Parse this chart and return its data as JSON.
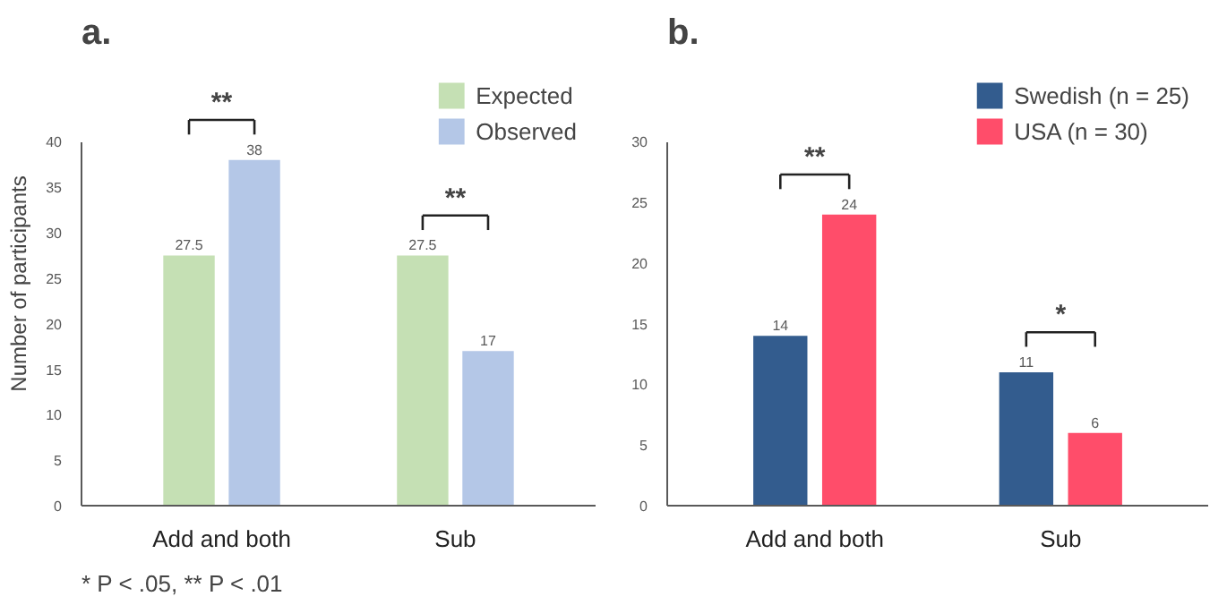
{
  "chart_data": [
    {
      "type": "bar",
      "title": "a.",
      "ylabel": "Number of participants",
      "categories": [
        "Add and both",
        "Sub"
      ],
      "series": [
        {
          "name": "Expected",
          "color": "#c5e0b4",
          "values": [
            27.5,
            27.5
          ]
        },
        {
          "name": "Observed",
          "color": "#b4c7e7",
          "values": [
            38,
            17
          ]
        }
      ],
      "ylim": [
        0,
        40
      ],
      "yticks": [
        0,
        5,
        10,
        15,
        20,
        25,
        30,
        35,
        40
      ],
      "grid": false,
      "legend": "top right",
      "data_labels": true,
      "annotations": [
        "**",
        "**",
        "* P < .05, ** P < .01"
      ]
    },
    {
      "type": "bar",
      "title": "b.",
      "categories": [
        "Add and both",
        "Sub"
      ],
      "series": [
        {
          "name": "Swedish (n = 25)",
          "color": "#335c8e",
          "values": [
            14,
            11
          ]
        },
        {
          "name": "USA (n = 30)",
          "color": "#ff4d6a",
          "values": [
            24,
            6
          ]
        }
      ],
      "ylim": [
        0,
        30
      ],
      "yticks": [
        0,
        5,
        10,
        15,
        20,
        25,
        30
      ],
      "grid": false,
      "legend": "top right",
      "data_labels": true,
      "annotations": [
        "**",
        "*"
      ]
    }
  ]
}
